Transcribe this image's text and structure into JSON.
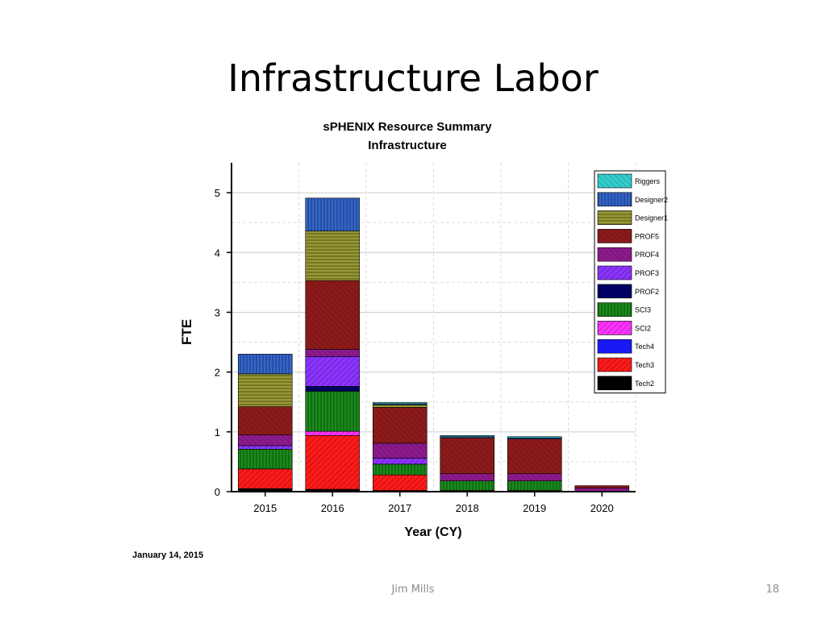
{
  "slide": {
    "title": "Infrastructure Labor",
    "footer": "Jim Mills",
    "page_number": "18",
    "date_note": "January 14, 2015"
  },
  "chart_data": {
    "type": "bar",
    "stacked": true,
    "title": "sPHENIX Resource Summary",
    "subtitle": "Infrastructure",
    "xlabel": "Year (CY)",
    "ylabel": "FTE",
    "ylim": [
      0,
      5.5
    ],
    "yticks": [
      "0",
      "1",
      "2",
      "3",
      "4",
      "5"
    ],
    "grid": true,
    "legend_position": "top-right",
    "categories": [
      "2015",
      "2016",
      "2017",
      "2018",
      "2019",
      "2020"
    ],
    "series": [
      {
        "name": "Tech2",
        "color": "#000000",
        "values": [
          0.05,
          0.04,
          0.02,
          0.0,
          0.0,
          0.0
        ]
      },
      {
        "name": "Tech3",
        "color": "#ff1a1a",
        "values": [
          0.33,
          0.9,
          0.26,
          0.02,
          0.02,
          0.0
        ]
      },
      {
        "name": "Tech4",
        "color": "#1a1aff",
        "values": [
          0.0,
          0.0,
          0.0,
          0.0,
          0.0,
          0.0
        ]
      },
      {
        "name": "SCI2",
        "color": "#ff33ff",
        "values": [
          0.0,
          0.07,
          0.0,
          0.0,
          0.0,
          0.0
        ]
      },
      {
        "name": "SCI3",
        "color": "#1a8c1a",
        "values": [
          0.33,
          0.67,
          0.18,
          0.16,
          0.16,
          0.0
        ]
      },
      {
        "name": "PROF2",
        "color": "#000066",
        "values": [
          0.0,
          0.08,
          0.0,
          0.0,
          0.0,
          0.0
        ]
      },
      {
        "name": "PROF3",
        "color": "#8c33ff",
        "values": [
          0.06,
          0.5,
          0.1,
          0.0,
          0.0,
          0.0
        ]
      },
      {
        "name": "PROF4",
        "color": "#8c1a8c",
        "values": [
          0.18,
          0.12,
          0.25,
          0.12,
          0.12,
          0.06
        ]
      },
      {
        "name": "PROF5",
        "color": "#8c1a1a",
        "values": [
          0.47,
          1.15,
          0.6,
          0.6,
          0.58,
          0.04
        ]
      },
      {
        "name": "Designer1",
        "color": "#999933",
        "values": [
          0.55,
          0.83,
          0.04,
          0.0,
          0.0,
          0.0
        ]
      },
      {
        "name": "Designer2",
        "color": "#3366cc",
        "values": [
          0.33,
          0.55,
          0.02,
          0.02,
          0.02,
          0.0
        ]
      },
      {
        "name": "Riggers",
        "color": "#33cccc",
        "values": [
          0.0,
          0.0,
          0.02,
          0.02,
          0.02,
          0.0
        ]
      }
    ]
  }
}
